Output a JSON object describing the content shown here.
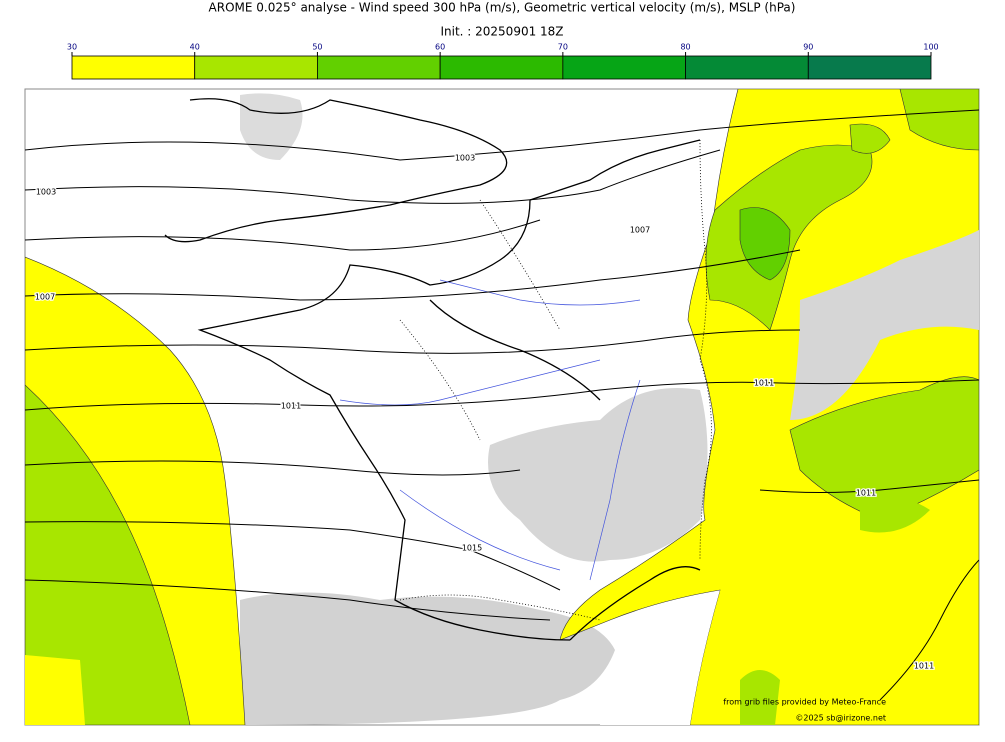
{
  "header": {
    "title": "AROME 0.025° analyse - Wind speed 300 hPa (m/s), Geometric vertical velocity (m/s), MSLP (hPa)",
    "subtitle": "Init. : 20250901 18Z"
  },
  "colorbar": {
    "ticks": [
      30,
      40,
      50,
      60,
      70,
      80,
      90,
      100
    ],
    "colors": [
      "#ffff00",
      "#a8e600",
      "#62d000",
      "#2cba00",
      "#06a516",
      "#048a36",
      "#077a4c"
    ]
  },
  "isobar_labels": [
    "1003",
    "1003",
    "1007",
    "1011",
    "1011",
    "1011",
    "1015",
    "1011",
    "1007"
  ],
  "credits": {
    "source": "from grib files provided by Meteo-France",
    "copyright": "©2025 sb@irizone.net"
  }
}
